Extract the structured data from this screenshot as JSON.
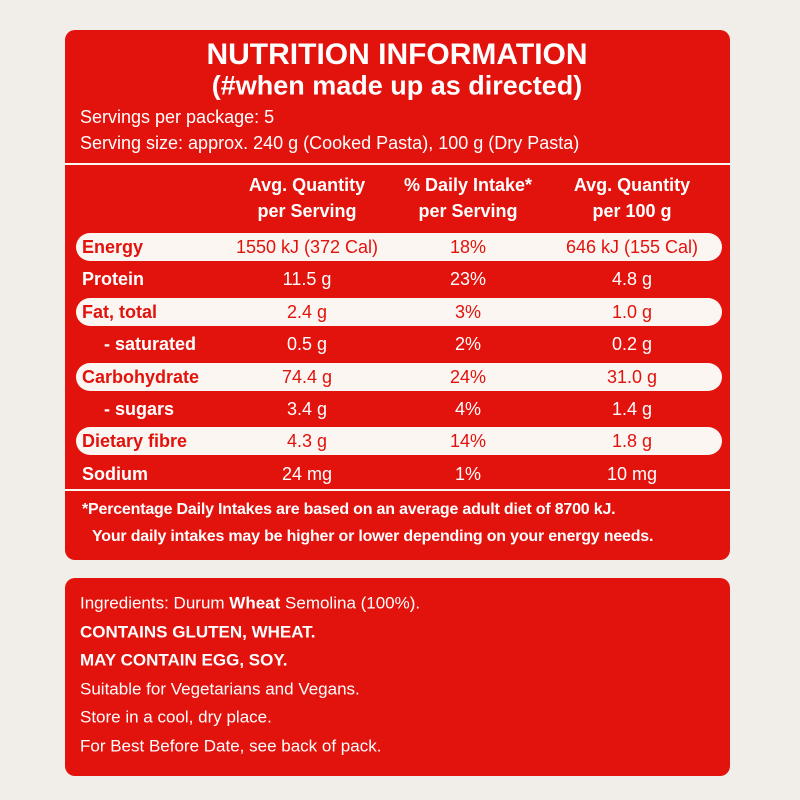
{
  "header": {
    "title": "NUTRITION INFORMATION",
    "subtitle": "(#when made up as directed)",
    "servings": "Servings per package: 5",
    "serving_size": "Serving size: approx. 240 g (Cooked Pasta), 100 g (Dry Pasta)"
  },
  "table": {
    "columns": [
      [
        "Avg. Quantity",
        "per Serving"
      ],
      [
        "% Daily Intake*",
        "per Serving"
      ],
      [
        "Avg. Quantity",
        "per 100 g"
      ]
    ],
    "rows": [
      [
        "Energy",
        "1550 kJ (372 Cal)",
        "18%",
        "646 kJ (155 Cal)"
      ],
      [
        "Protein",
        "11.5 g",
        "23%",
        "4.8 g"
      ],
      [
        "Fat, total",
        "2.4 g",
        "3%",
        "1.0 g"
      ],
      [
        "- saturated",
        "0.5 g",
        "2%",
        "0.2 g"
      ],
      [
        "Carbohydrate",
        "74.4 g",
        "24%",
        "31.0 g"
      ],
      [
        "- sugars",
        "3.4 g",
        "4%",
        "1.4 g"
      ],
      [
        "Dietary fibre",
        "4.3 g",
        "14%",
        "1.8 g"
      ],
      [
        "Sodium",
        "24 mg",
        "1%",
        "10 mg"
      ]
    ]
  },
  "footnote": [
    "*Percentage Daily Intakes are based on an average adult diet of 8700 kJ.",
    "Your daily intakes may be higher or lower depending on your energy needs."
  ],
  "ingredients": [
    [
      {
        "text": "Ingredients: Durum ",
        "bold": false
      },
      {
        "text": "Wheat",
        "bold": true
      },
      {
        "text": " Semolina (100%).",
        "bold": false
      }
    ],
    [
      {
        "text": "CONTAINS GLUTEN, WHEAT.",
        "bold": true
      }
    ],
    [
      {
        "text": "MAY CONTAIN EGG, SOY.",
        "bold": true
      }
    ],
    [
      {
        "text": "Suitable for Vegetarians and Vegans.",
        "bold": false
      }
    ],
    [
      {
        "text": "Store in a cool, dry place.",
        "bold": false
      }
    ],
    [
      {
        "text": "For Best Before Date, see back of pack.",
        "bold": false
      }
    ]
  ]
}
